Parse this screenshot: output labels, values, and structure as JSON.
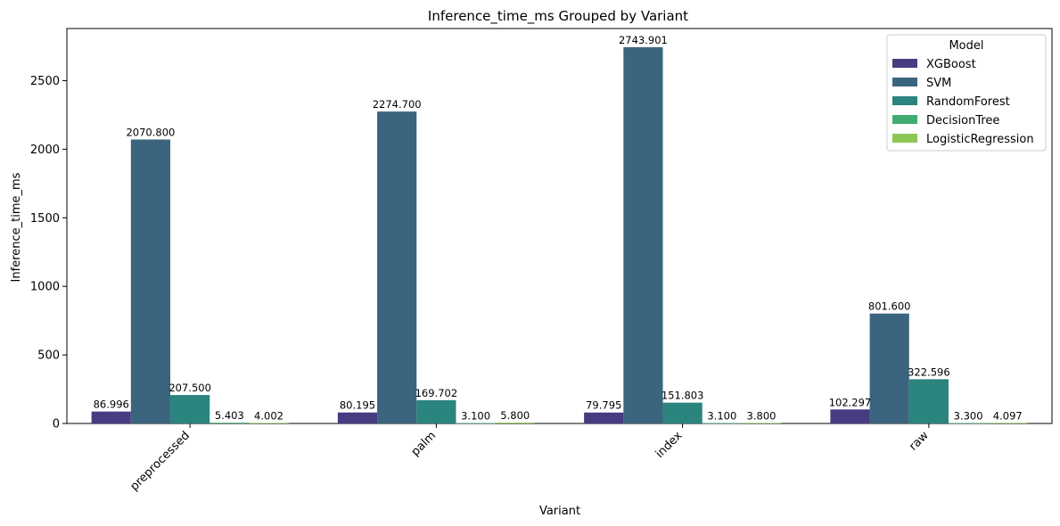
{
  "chart_data": {
    "type": "bar",
    "title": "Inference_time_ms Grouped by Variant",
    "xlabel": "Variant",
    "ylabel": "Inference_time_ms",
    "categories": [
      "preprocessed",
      "palm",
      "index",
      "raw"
    ],
    "ylim": [
      0,
      2880
    ],
    "yticks": [
      0,
      500,
      1000,
      1500,
      2000,
      2500
    ],
    "grid": false,
    "legend": {
      "title": "Model",
      "placement": "top-right"
    },
    "series": [
      {
        "name": "XGBoost",
        "color": "#463c81",
        "values": [
          86.996,
          80.195,
          79.795,
          102.297
        ],
        "labels": [
          "86.996",
          "80.195",
          "79.795",
          "102.297"
        ]
      },
      {
        "name": "SVM",
        "color": "#3b657f",
        "values": [
          2070.8,
          2274.7,
          2743.901,
          801.6
        ],
        "labels": [
          "2070.800",
          "2274.700",
          "2743.901",
          "801.600"
        ]
      },
      {
        "name": "RandomForest",
        "color": "#2b847e",
        "values": [
          207.5,
          169.702,
          151.803,
          322.596
        ],
        "labels": [
          "207.500",
          "169.702",
          "151.803",
          "322.596"
        ]
      },
      {
        "name": "DecisionTree",
        "color": "#40ac72",
        "values": [
          5.403,
          3.1,
          3.1,
          3.3
        ],
        "labels": [
          "5.403",
          "3.100",
          "3.100",
          "3.300"
        ]
      },
      {
        "name": "LogisticRegression",
        "color": "#8dc654",
        "values": [
          4.002,
          5.8,
          3.8,
          4.097
        ],
        "labels": [
          "4.002",
          "5.800",
          "3.800",
          "4.097"
        ]
      }
    ]
  }
}
